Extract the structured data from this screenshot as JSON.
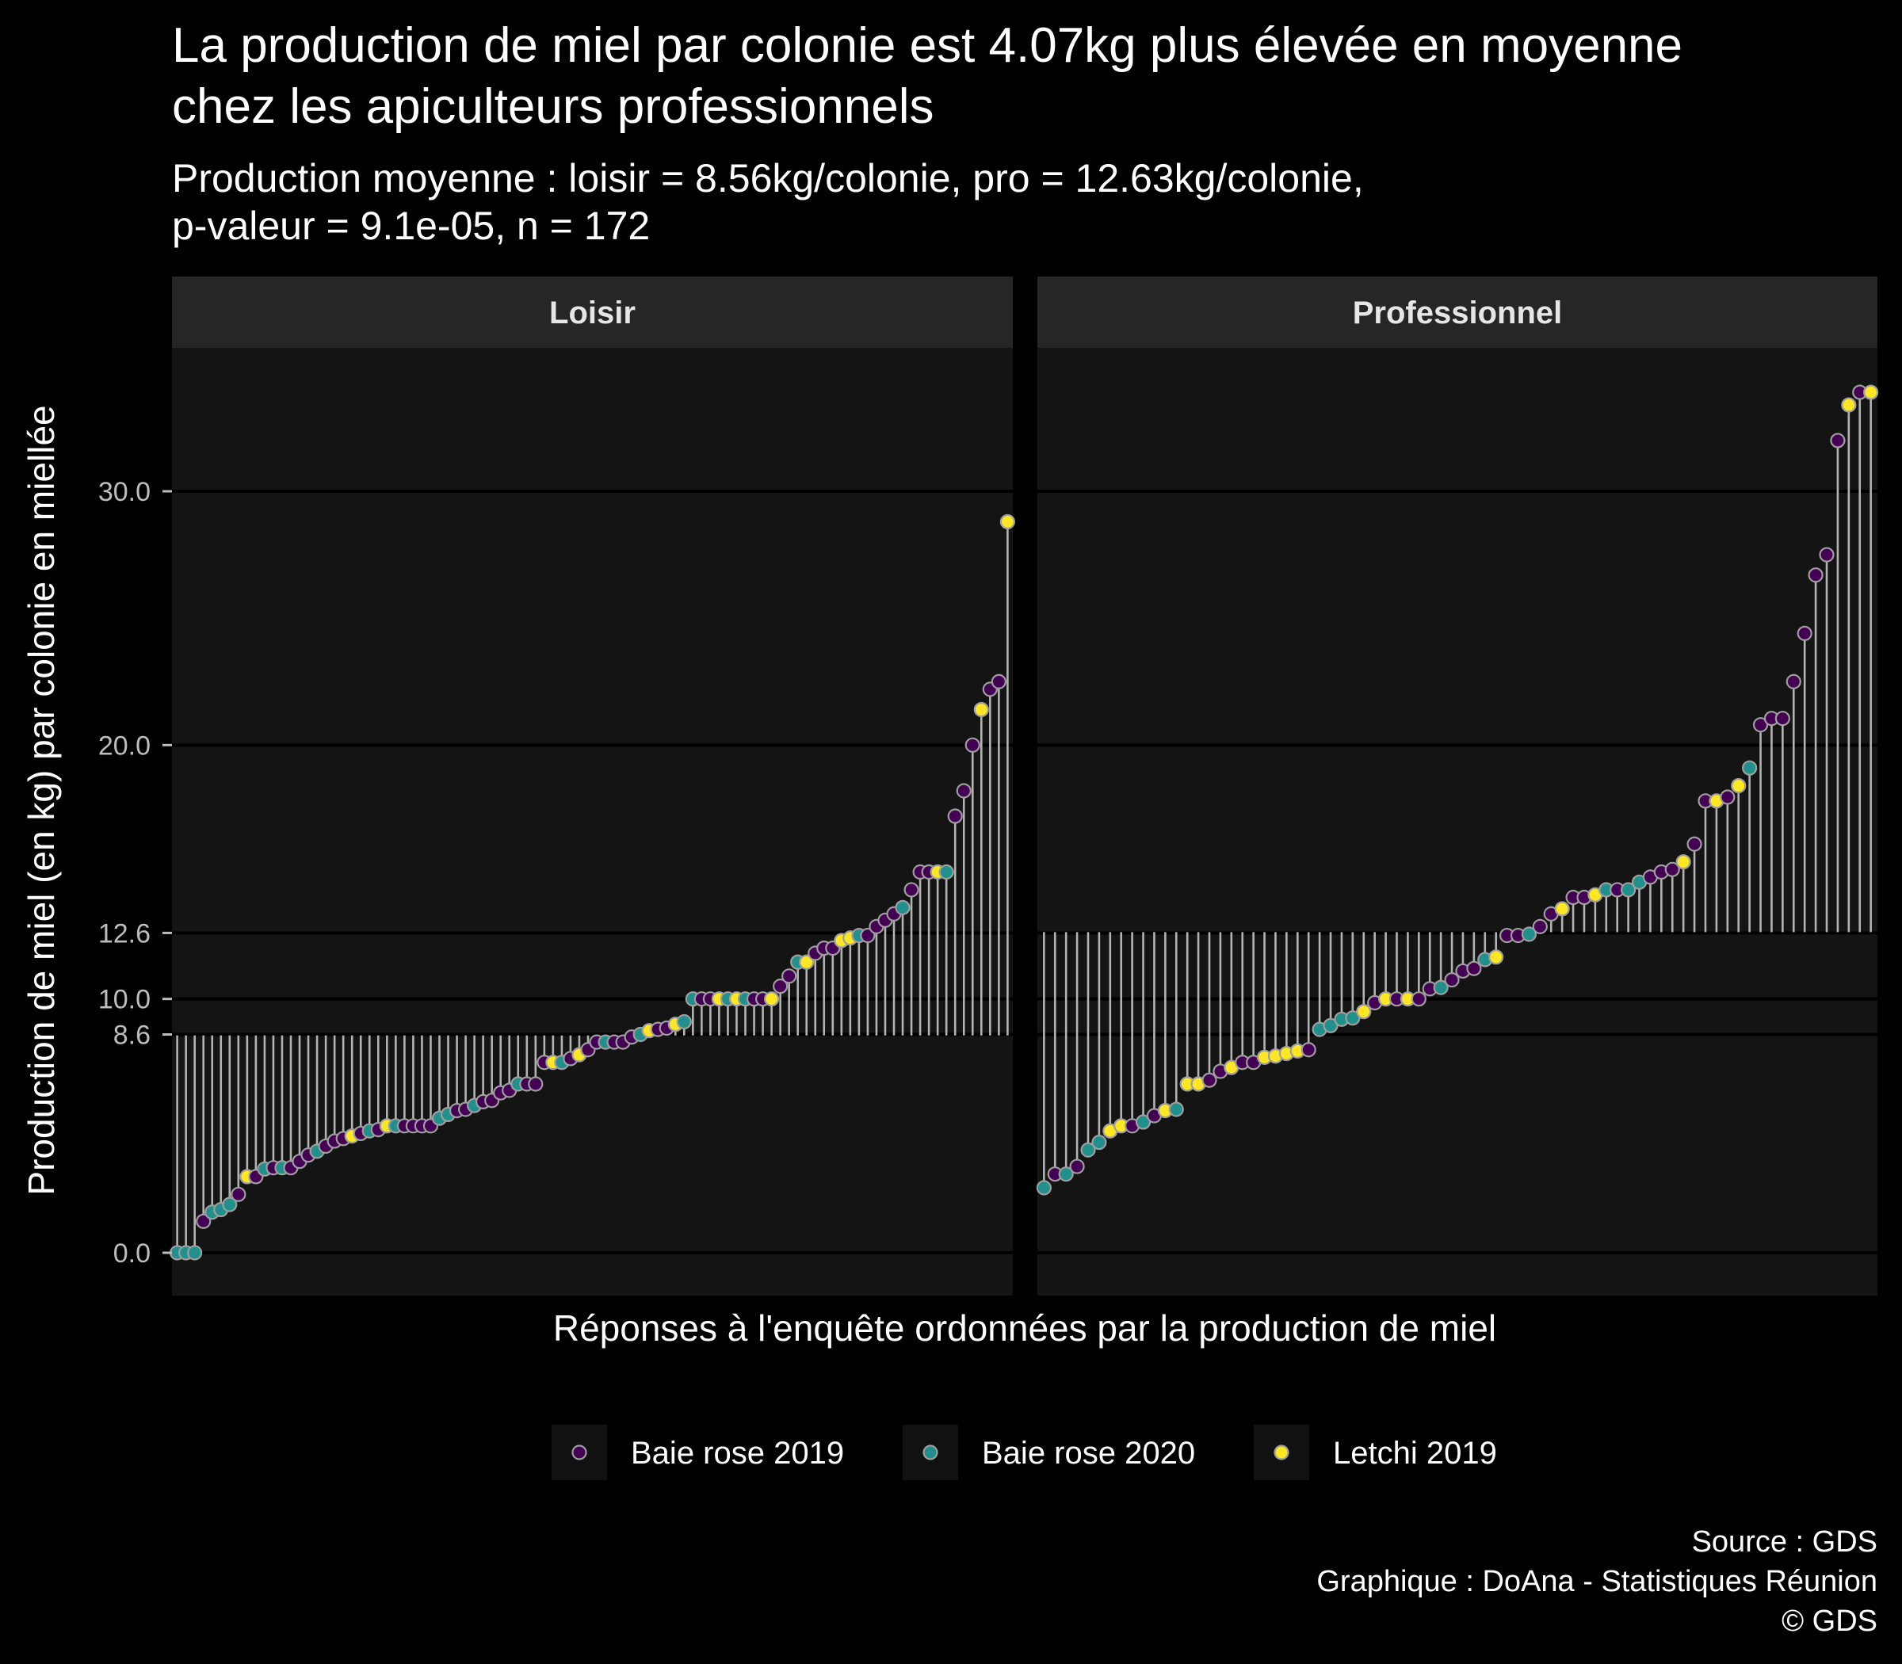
{
  "chart_data": {
    "type": "lollipop",
    "title_lines": [
      "La production de miel par colonie est 4.07kg plus élevée en moyenne",
      "chez les apiculteurs professionnels"
    ],
    "subtitle_lines": [
      "Production moyenne : loisir = 8.56kg/colonie, pro = 12.63kg/colonie,",
      "p-valeur = 9.1e-05, n = 172"
    ],
    "xlabel": "Réponses à l'enquête ordonnées par la production de miel",
    "ylabel": "Production de miel (en kg) par colonie en miellée",
    "ylim": [
      -1.7,
      35.6
    ],
    "yticks": [
      0,
      8.6,
      10,
      12.6,
      20,
      30
    ],
    "ytick_labels": [
      "0.0",
      "8.6",
      "10.0",
      "12.6",
      "20.0",
      "30.0"
    ],
    "legend": {
      "position": "bottom",
      "entries": [
        "Baie rose 2019",
        "Baie rose 2020",
        "Letchi 2019"
      ],
      "colors": [
        "#440154",
        "#21908C",
        "#FDE725"
      ]
    },
    "point_outline_color": "#9e9e9e",
    "stem_color": "#b3b3b3",
    "panels": [
      {
        "label": "Loisir",
        "mean": 8.56,
        "values": [
          0,
          0,
          0,
          1.24,
          1.6,
          1.7,
          1.9,
          2.3,
          3.0,
          3.0,
          3.3,
          3.35,
          3.35,
          3.35,
          3.6,
          3.85,
          4.0,
          4.2,
          4.4,
          4.5,
          4.6,
          4.7,
          4.8,
          4.85,
          5.0,
          5.0,
          5.0,
          5.0,
          5.0,
          5.0,
          5.3,
          5.45,
          5.6,
          5.65,
          5.8,
          5.95,
          6.0,
          6.3,
          6.4,
          6.65,
          6.65,
          6.65,
          7.5,
          7.5,
          7.5,
          7.65,
          7.8,
          8.0,
          8.3,
          8.3,
          8.3,
          8.3,
          8.5,
          8.6,
          8.75,
          8.8,
          8.85,
          9.0,
          9.1,
          10,
          10,
          10,
          10,
          10,
          10,
          10,
          10,
          10,
          10,
          10.5,
          10.9,
          11.45,
          11.45,
          11.8,
          12.0,
          12.0,
          12.3,
          12.4,
          12.5,
          12.5,
          12.85,
          13.1,
          13.35,
          13.6,
          14.3,
          15,
          15,
          15,
          15,
          17.2,
          18.2,
          20.0,
          21.4,
          22.2,
          22.5,
          28.8
        ],
        "groups": [
          1,
          1,
          1,
          0,
          1,
          1,
          1,
          0,
          2,
          0,
          1,
          0,
          1,
          0,
          0,
          0,
          1,
          0,
          0,
          0,
          2,
          0,
          1,
          0,
          2,
          1,
          0,
          0,
          0,
          0,
          1,
          1,
          0,
          0,
          1,
          0,
          0,
          0,
          0,
          1,
          0,
          0,
          0,
          2,
          1,
          0,
          2,
          0,
          0,
          1,
          0,
          0,
          0,
          1,
          2,
          0,
          0,
          2,
          1,
          1,
          0,
          0,
          2,
          1,
          2,
          1,
          0,
          0,
          2,
          0,
          0,
          1,
          2,
          0,
          0,
          0,
          2,
          2,
          1,
          0,
          0,
          0,
          0,
          1,
          0,
          0,
          0,
          2,
          1,
          0,
          0,
          0,
          2,
          0,
          0,
          2
        ]
      },
      {
        "label": "Professionnel",
        "mean": 12.63,
        "values": [
          2.56,
          3.1,
          3.1,
          3.4,
          4.05,
          4.35,
          4.8,
          5.0,
          5.0,
          5.15,
          5.4,
          5.6,
          5.65,
          6.65,
          6.65,
          6.8,
          7.15,
          7.3,
          7.5,
          7.5,
          7.7,
          7.75,
          7.85,
          7.95,
          8.0,
          8.8,
          8.95,
          9.2,
          9.25,
          9.5,
          9.85,
          10,
          10,
          10,
          10,
          10.4,
          10.45,
          10.75,
          11.1,
          11.2,
          11.55,
          11.65,
          12.5,
          12.5,
          12.55,
          12.85,
          13.35,
          13.55,
          14.0,
          14.0,
          14.1,
          14.3,
          14.3,
          14.3,
          14.6,
          14.8,
          15.0,
          15.1,
          15.4,
          16.1,
          17.8,
          17.8,
          17.95,
          18.4,
          19.1,
          20.8,
          21.05,
          21.05,
          22.5,
          24.4,
          26.7,
          27.5,
          32.0,
          33.4,
          33.9,
          33.9
        ],
        "groups": [
          1,
          0,
          1,
          0,
          1,
          1,
          2,
          2,
          0,
          1,
          0,
          2,
          1,
          2,
          2,
          0,
          0,
          2,
          0,
          0,
          2,
          2,
          2,
          2,
          0,
          1,
          1,
          1,
          1,
          2,
          0,
          2,
          0,
          2,
          0,
          0,
          1,
          0,
          0,
          0,
          1,
          2,
          0,
          0,
          1,
          0,
          0,
          2,
          0,
          0,
          2,
          1,
          0,
          1,
          1,
          0,
          0,
          0,
          2,
          0,
          0,
          2,
          0,
          2,
          1,
          0,
          0,
          0,
          0,
          0,
          0,
          0,
          0,
          2,
          0,
          2
        ]
      }
    ]
  },
  "caption_lines": [
    "Source : GDS",
    "Graphique : DoAna - Statistiques Réunion",
    "© GDS"
  ]
}
